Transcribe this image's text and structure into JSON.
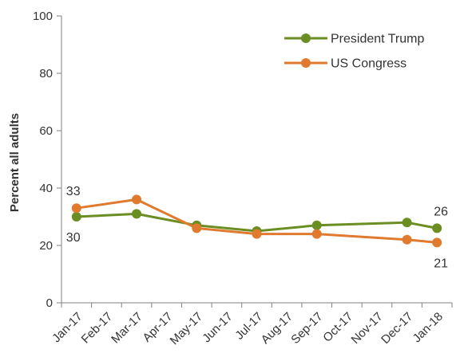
{
  "chart_data": {
    "type": "line",
    "title": "",
    "xlabel": "",
    "ylabel": "Percent all adults",
    "ylim": [
      0,
      100
    ],
    "yticks": [
      0,
      20,
      40,
      60,
      80,
      100
    ],
    "grid": false,
    "legend_position": "top-right",
    "categories": [
      "Jan-17",
      "Feb-17",
      "Mar-17",
      "Apr-17",
      "May-17",
      "Jun-17",
      "Jul-17",
      "Aug-17",
      "Sep-17",
      "Oct-17",
      "Nov-17",
      "Dec-17",
      "Jan-18"
    ],
    "series": [
      {
        "name": "President Trump",
        "color": "#6b8e23",
        "points": [
          {
            "x": "Jan-17",
            "y": 30
          },
          {
            "x": "Mar-17",
            "y": 31
          },
          {
            "x": "May-17",
            "y": 27
          },
          {
            "x": "Jul-17",
            "y": 25
          },
          {
            "x": "Sep-17",
            "y": 27
          },
          {
            "x": "Dec-17",
            "y": 28
          },
          {
            "x": "Jan-18",
            "y": 26
          }
        ]
      },
      {
        "name": "US Congress",
        "color": "#e07a2e",
        "points": [
          {
            "x": "Jan-17",
            "y": 33
          },
          {
            "x": "Mar-17",
            "y": 36
          },
          {
            "x": "May-17",
            "y": 26
          },
          {
            "x": "Jul-17",
            "y": 24
          },
          {
            "x": "Sep-17",
            "y": 24
          },
          {
            "x": "Dec-17",
            "y": 22
          },
          {
            "x": "Jan-18",
            "y": 21
          }
        ]
      }
    ],
    "data_labels": [
      {
        "text": "33",
        "series": 1,
        "point": 0,
        "pos": "above-left"
      },
      {
        "text": "30",
        "series": 0,
        "point": 0,
        "pos": "below"
      },
      {
        "text": "26",
        "series": 0,
        "point": 6,
        "pos": "above-right"
      },
      {
        "text": "21",
        "series": 1,
        "point": 6,
        "pos": "below-right"
      }
    ]
  }
}
